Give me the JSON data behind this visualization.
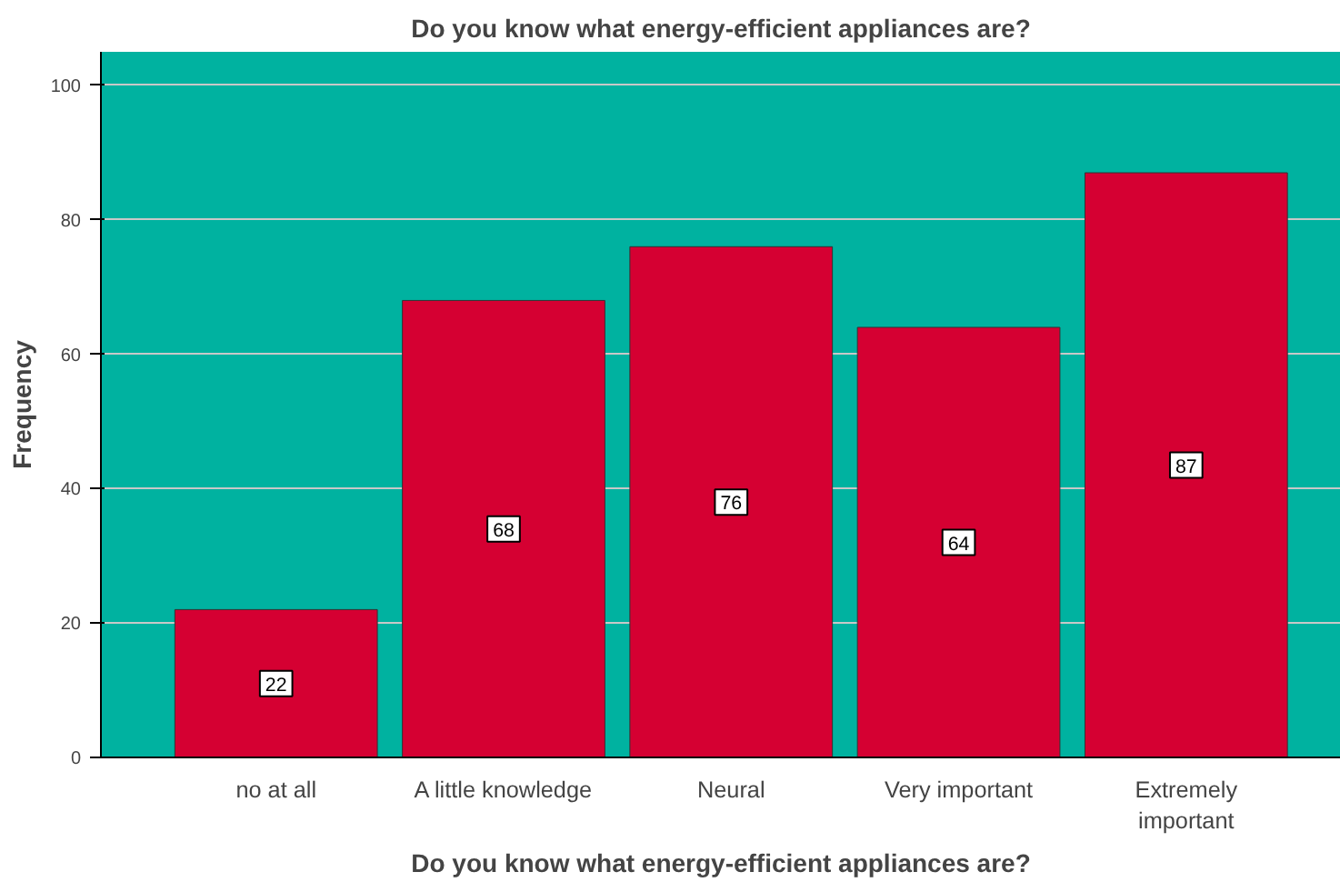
{
  "chart_data": {
    "type": "bar",
    "title": "Do you know what energy-efficient appliances are?",
    "xlabel": "Do you know what energy-efficient appliances are?",
    "ylabel": "Frequency",
    "categories": [
      "no at all",
      "A little knowledge",
      "Neural",
      "Very important",
      "Extremely important"
    ],
    "values": [
      22,
      68,
      76,
      64,
      87
    ],
    "color": "#d50032",
    "ylim": [
      0,
      105
    ],
    "yticks": [
      0,
      20,
      40,
      60,
      80,
      100
    ],
    "grid": "y",
    "data_labels": true
  }
}
